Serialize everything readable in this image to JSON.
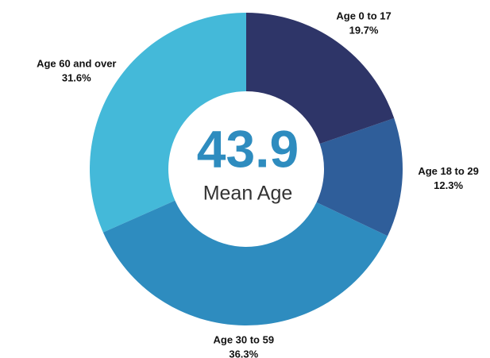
{
  "chart_data": {
    "type": "donut",
    "categories": [
      "Age 0 to 17",
      "Age 18 to 29",
      "Age 30 to 59",
      "Age 60 and over"
    ],
    "values": [
      19.7,
      12.3,
      36.3,
      31.6
    ],
    "value_labels": [
      "19.7%",
      "12.3%",
      "36.3%",
      "31.6%"
    ],
    "colors": [
      "#2e3568",
      "#2f5e9a",
      "#2e8cbf",
      "#44b9d9"
    ],
    "center_value": 43.9,
    "center_label": "Mean Age"
  }
}
